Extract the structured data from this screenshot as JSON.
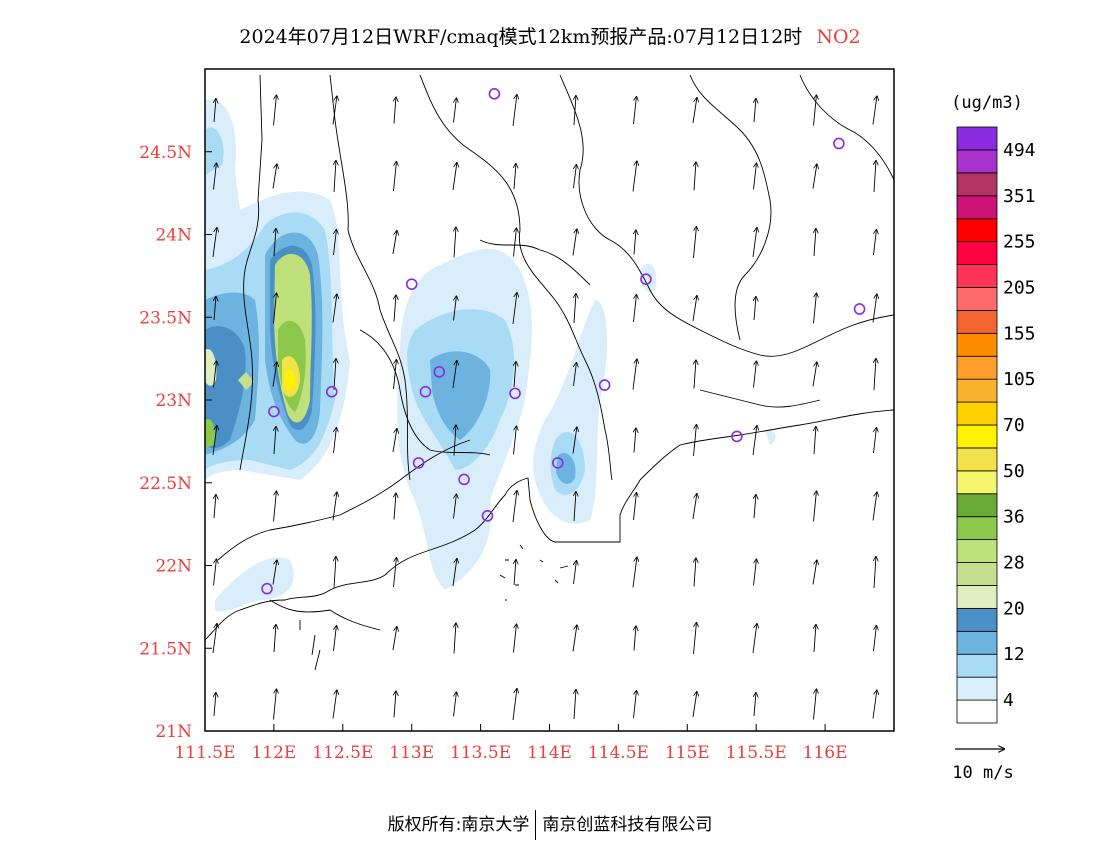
{
  "title": {
    "main": "2024年07月12日WRF/cmaq模式12km预报产品:07月12日12时",
    "species": "NO2",
    "species_color": "#e8403a"
  },
  "map": {
    "lon_range": [
      111.5,
      116.5
    ],
    "lat_range": [
      21.0,
      25.0
    ],
    "x_ticks": [
      111.5,
      112.0,
      112.5,
      113.0,
      113.5,
      114.0,
      114.5,
      115.0,
      115.5,
      116.0
    ],
    "x_tick_labels": [
      "111.5E",
      "112E",
      "112.5E",
      "113E",
      "113.5E",
      "114E",
      "114.5E",
      "115E",
      "115.5E",
      "116E"
    ],
    "y_ticks": [
      21.0,
      21.5,
      22.0,
      22.5,
      23.0,
      23.5,
      24.0,
      24.5
    ],
    "y_tick_labels": [
      "21N",
      "21.5N",
      "22N",
      "22.5N",
      "23N",
      "23.5N",
      "24N",
      "24.5N"
    ],
    "tick_label_color": "#e8403a",
    "station_color": "#8a2be2",
    "stations": [
      {
        "lon": 113.6,
        "lat": 24.85
      },
      {
        "lon": 116.1,
        "lat": 24.55
      },
      {
        "lon": 113.0,
        "lat": 23.7
      },
      {
        "lon": 114.7,
        "lat": 23.73
      },
      {
        "lon": 116.25,
        "lat": 23.55
      },
      {
        "lon": 113.2,
        "lat": 23.17
      },
      {
        "lon": 112.42,
        "lat": 23.05
      },
      {
        "lon": 113.1,
        "lat": 23.05
      },
      {
        "lon": 113.75,
        "lat": 23.04
      },
      {
        "lon": 114.4,
        "lat": 23.09
      },
      {
        "lon": 112.0,
        "lat": 22.93
      },
      {
        "lon": 115.36,
        "lat": 22.78
      },
      {
        "lon": 113.05,
        "lat": 22.62
      },
      {
        "lon": 114.06,
        "lat": 22.62
      },
      {
        "lon": 113.38,
        "lat": 22.52
      },
      {
        "lon": 113.55,
        "lat": 22.3
      },
      {
        "lon": 111.95,
        "lat": 21.86
      }
    ]
  },
  "legend": {
    "unit": "(ug/m3)",
    "colors": [
      "#ffffff",
      "#d9eefa",
      "#a9dcf4",
      "#6cb3e0",
      "#4a90c6",
      "#e0edc1",
      "#c4e08c",
      "#bfe07a",
      "#8cc84b",
      "#6aaa37",
      "#f5f56e",
      "#f2e14a",
      "#fff200",
      "#ffd000",
      "#f7b12d",
      "#ff9d2a",
      "#ff8c00",
      "#f26430",
      "#ff6a6a",
      "#ff3355",
      "#ff0040",
      "#ff0000",
      "#cc1177",
      "#b33362",
      "#a733cc",
      "#8a2be2"
    ],
    "labels": [
      "4",
      "12",
      "20",
      "28",
      "36",
      "50",
      "70",
      "105",
      "155",
      "205",
      "255",
      "351",
      "494"
    ],
    "wind_ref_label": "10 m/s"
  },
  "credit": {
    "left": "版权所有:南京大学",
    "right": "南京创蓝科技有限公司"
  }
}
